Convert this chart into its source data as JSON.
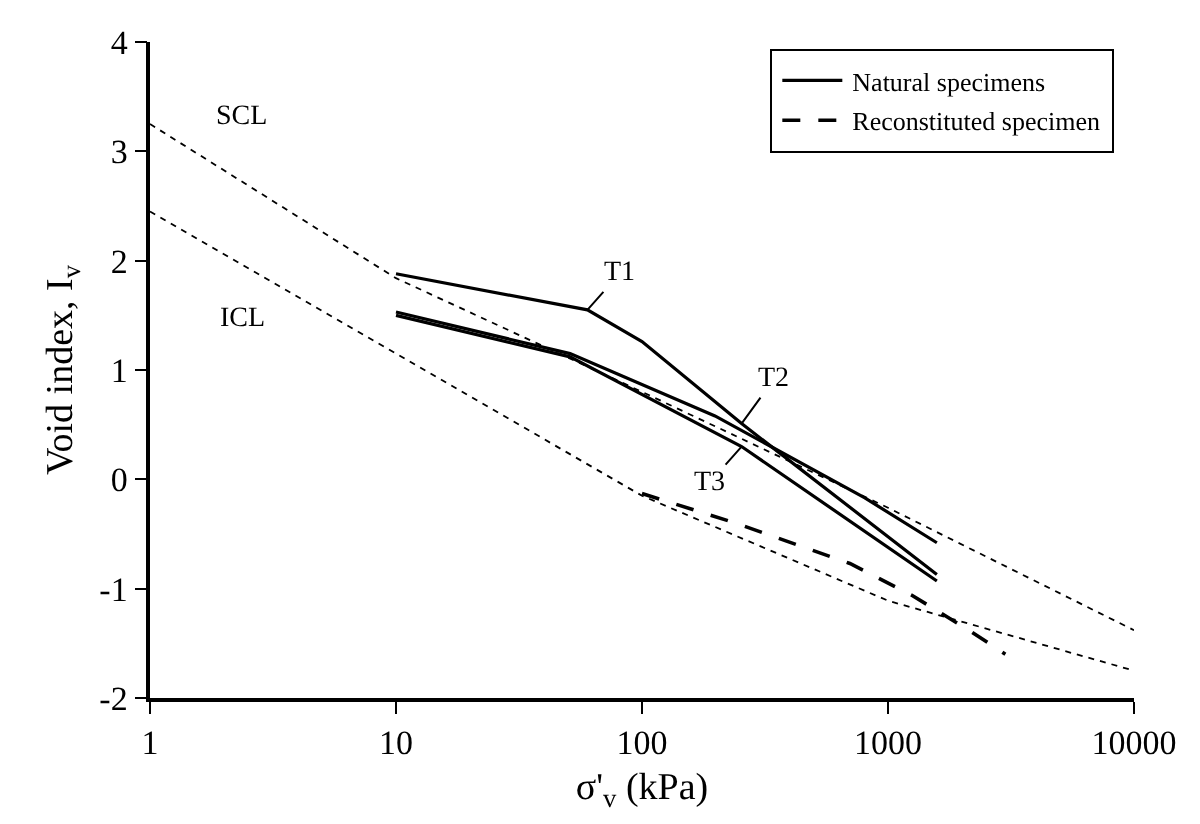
{
  "chart_data": {
    "type": "line",
    "xlabel": "σ'$_{v}$ (kPa)",
    "ylabel": "Void index, I$_{v}$",
    "log": "x",
    "xlim": [
      1,
      10000
    ],
    "xticks": [
      1,
      10,
      100,
      1000,
      10000
    ],
    "ylim": [
      -2,
      4
    ],
    "yticks": [
      -2,
      -1,
      0,
      1,
      2,
      3,
      4
    ],
    "legend": "top right",
    "marker": "none",
    "series": [
      {
        "name": "Natural specimens",
        "color": "#000000",
        "line_style": "solid",
        "x": [
          10,
          60,
          100,
          254,
          1580
        ],
        "values": [
          1.88,
          1.55,
          1.26,
          0.51,
          -0.87
        ]
      },
      {
        "color": "#000000",
        "line_style": "solid",
        "x": [
          10,
          51,
          198,
          805,
          1580
        ],
        "values": [
          1.53,
          1.15,
          0.58,
          -0.17,
          -0.58
        ]
      },
      {
        "color": "#000000",
        "line_style": "solid",
        "x": [
          10,
          51,
          254,
          1580
        ],
        "values": [
          1.5,
          1.12,
          0.3,
          -0.93
        ]
      },
      {
        "name": "Reconstituted specimen",
        "color": "#000000",
        "line_style": "dashed",
        "x": [
          100,
          240,
          700,
          1250,
          2200,
          3000
        ],
        "values": [
          -0.13,
          -0.4,
          -0.77,
          -1.06,
          -1.4,
          -1.6
        ]
      },
      {
        "color": "#000000",
        "line_style": "dotted",
        "x": [
          1,
          10,
          100,
          1000,
          10000
        ],
        "values": [
          3.25,
          1.84,
          0.8,
          -0.26,
          -1.38
        ]
      },
      {
        "color": "#000000",
        "line_style": "dotted",
        "x": [
          1,
          10,
          100,
          1000,
          10000
        ],
        "values": [
          2.45,
          1.15,
          -0.15,
          -1.11,
          -1.75
        ]
      }
    ],
    "annotations": [
      {
        "text": "SCL",
        "x": 1,
        "y": 3.25
      },
      {
        "text": "ICL",
        "x": 2.4,
        "y": 1.95
      },
      {
        "text": "T1",
        "x": 60,
        "y": 1.55
      },
      {
        "text": "T2",
        "x": 254,
        "y": 0.51
      },
      {
        "text": "T3",
        "x": 254,
        "y": 0.3
      }
    ]
  }
}
